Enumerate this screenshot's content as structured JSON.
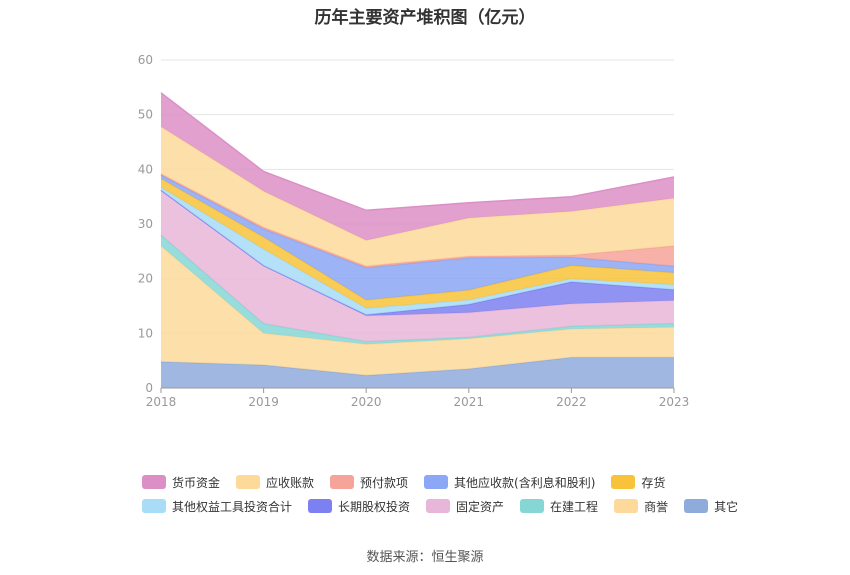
{
  "title": "历年主要资产堆积图（亿元）",
  "source_label": "数据来源：恒生聚源",
  "colors": {
    "货币资金": "#dc8fc6",
    "应收账款": "#fdd99a",
    "预付款项": "#f6a39a",
    "其他应收款(含利息和股利)": "#8ba7f5",
    "存货": "#f8c33a",
    "其他权益工具投资合计": "#a8dcf7",
    "长期股权投资": "#7c80f0",
    "固定资产": "#e7b6d8",
    "在建工程": "#86d6d6",
    "商誉": "#fdd99a",
    "其它": "#8fabdc"
  },
  "chart_data": {
    "type": "area",
    "stacked": true,
    "x": [
      "2018",
      "2019",
      "2020",
      "2021",
      "2022",
      "2023"
    ],
    "ylim": [
      0,
      60
    ],
    "yticks": [
      0,
      10,
      20,
      30,
      40,
      50,
      60
    ],
    "grid": true,
    "legend_position": "bottom",
    "series": [
      {
        "name": "其它",
        "values": [
          4.8,
          4.2,
          2.3,
          3.5,
          5.6,
          5.6
        ]
      },
      {
        "name": "商誉",
        "values": [
          21.2,
          5.8,
          5.7,
          5.5,
          5.2,
          5.5
        ]
      },
      {
        "name": "在建工程",
        "values": [
          2.0,
          1.8,
          0.5,
          0.3,
          0.5,
          0.7
        ]
      },
      {
        "name": "固定资产",
        "values": [
          8.2,
          10.6,
          4.7,
          4.5,
          4.1,
          4.2
        ]
      },
      {
        "name": "长期股权投资",
        "values": [
          0.0,
          0.0,
          0.2,
          1.5,
          4.0,
          2.0
        ]
      },
      {
        "name": "其他权益工具投资合计",
        "values": [
          0.5,
          3.0,
          1.2,
          0.8,
          0.6,
          0.9
        ]
      },
      {
        "name": "存货",
        "values": [
          1.6,
          2.2,
          1.5,
          1.8,
          2.4,
          2.2
        ]
      },
      {
        "name": "其他应收款(含利息和股利)",
        "values": [
          0.7,
          1.5,
          5.9,
          5.9,
          1.5,
          1.2
        ]
      },
      {
        "name": "预付款项",
        "values": [
          0.2,
          0.3,
          0.3,
          0.3,
          0.4,
          3.7
        ]
      },
      {
        "name": "应收账款",
        "values": [
          8.6,
          6.6,
          4.7,
          7.0,
          8.0,
          8.7
        ]
      },
      {
        "name": "货币资金",
        "values": [
          6.2,
          3.6,
          5.5,
          2.8,
          2.7,
          3.9
        ]
      }
    ]
  },
  "legend": {
    "row1": [
      "货币资金",
      "应收账款",
      "预付款项",
      "其他应收款(含利息和股利)",
      "存货"
    ],
    "row2": [
      "其他权益工具投资合计",
      "长期股权投资",
      "固定资产",
      "在建工程",
      "商誉",
      "其它"
    ]
  }
}
